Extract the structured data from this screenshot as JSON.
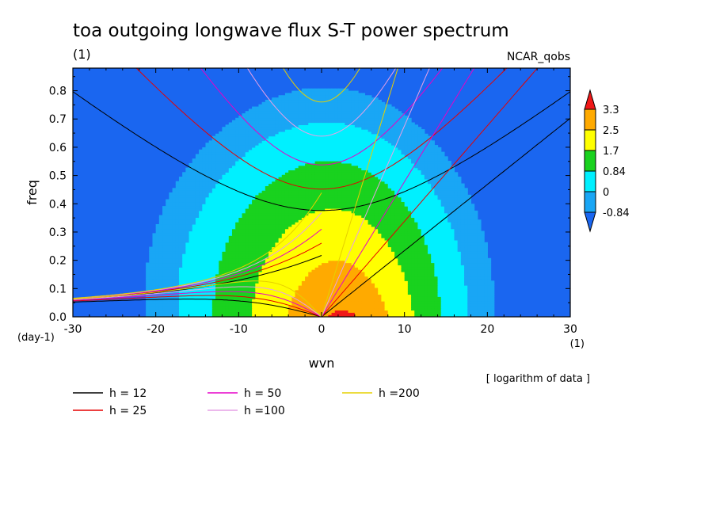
{
  "chart_data": {
    "type": "heatmap",
    "title": "toa outgoing longwave flux S-T power spectrum",
    "subtitle_left": "(1)",
    "subtitle_right": "NCAR_qobs",
    "xlabel": "wvn",
    "ylabel": "freq",
    "x_unit": "(1)",
    "y_unit": "(day-1)",
    "note": "[ logarithm of data ]",
    "xlim": [
      -30,
      30
    ],
    "ylim": [
      0,
      0.88
    ],
    "x_ticks": [
      -30,
      -20,
      -10,
      0,
      10,
      20,
      30
    ],
    "x_tick_labels": [
      "-30",
      "-20",
      "-10",
      "0",
      "10",
      "20",
      "30"
    ],
    "y_ticks": [
      0,
      0.1,
      0.2,
      0.3,
      0.4,
      0.5,
      0.6,
      0.7,
      0.8
    ],
    "y_tick_labels": [
      "0.0",
      "0.1",
      "0.2",
      "0.3",
      "0.4",
      "0.5",
      "0.6",
      "0.7",
      "0.8"
    ],
    "colorbar": {
      "levels": [
        -0.84,
        0,
        0.84,
        1.7,
        2.5,
        3.3
      ],
      "labels": [
        "-0.84",
        "0",
        "0.84",
        "1.7",
        "2.5",
        "3.3"
      ],
      "colors": [
        "#1a66f0",
        "#19a6f5",
        "#00f0ff",
        "#19d21e",
        "#ffff00",
        "#ffaa00",
        "#f01818"
      ]
    },
    "dispersion_curves": [
      {
        "label": "h = 12",
        "h": 12,
        "color": "#000000"
      },
      {
        "label": "h = 25",
        "h": 25,
        "color": "#e60000"
      },
      {
        "label": "h = 50",
        "h": 50,
        "color": "#e600c8"
      },
      {
        "label": "h =100",
        "h": 100,
        "color": "#e6a0e6"
      },
      {
        "label": "h =200",
        "h": 200,
        "color": "#e6d000"
      }
    ]
  }
}
